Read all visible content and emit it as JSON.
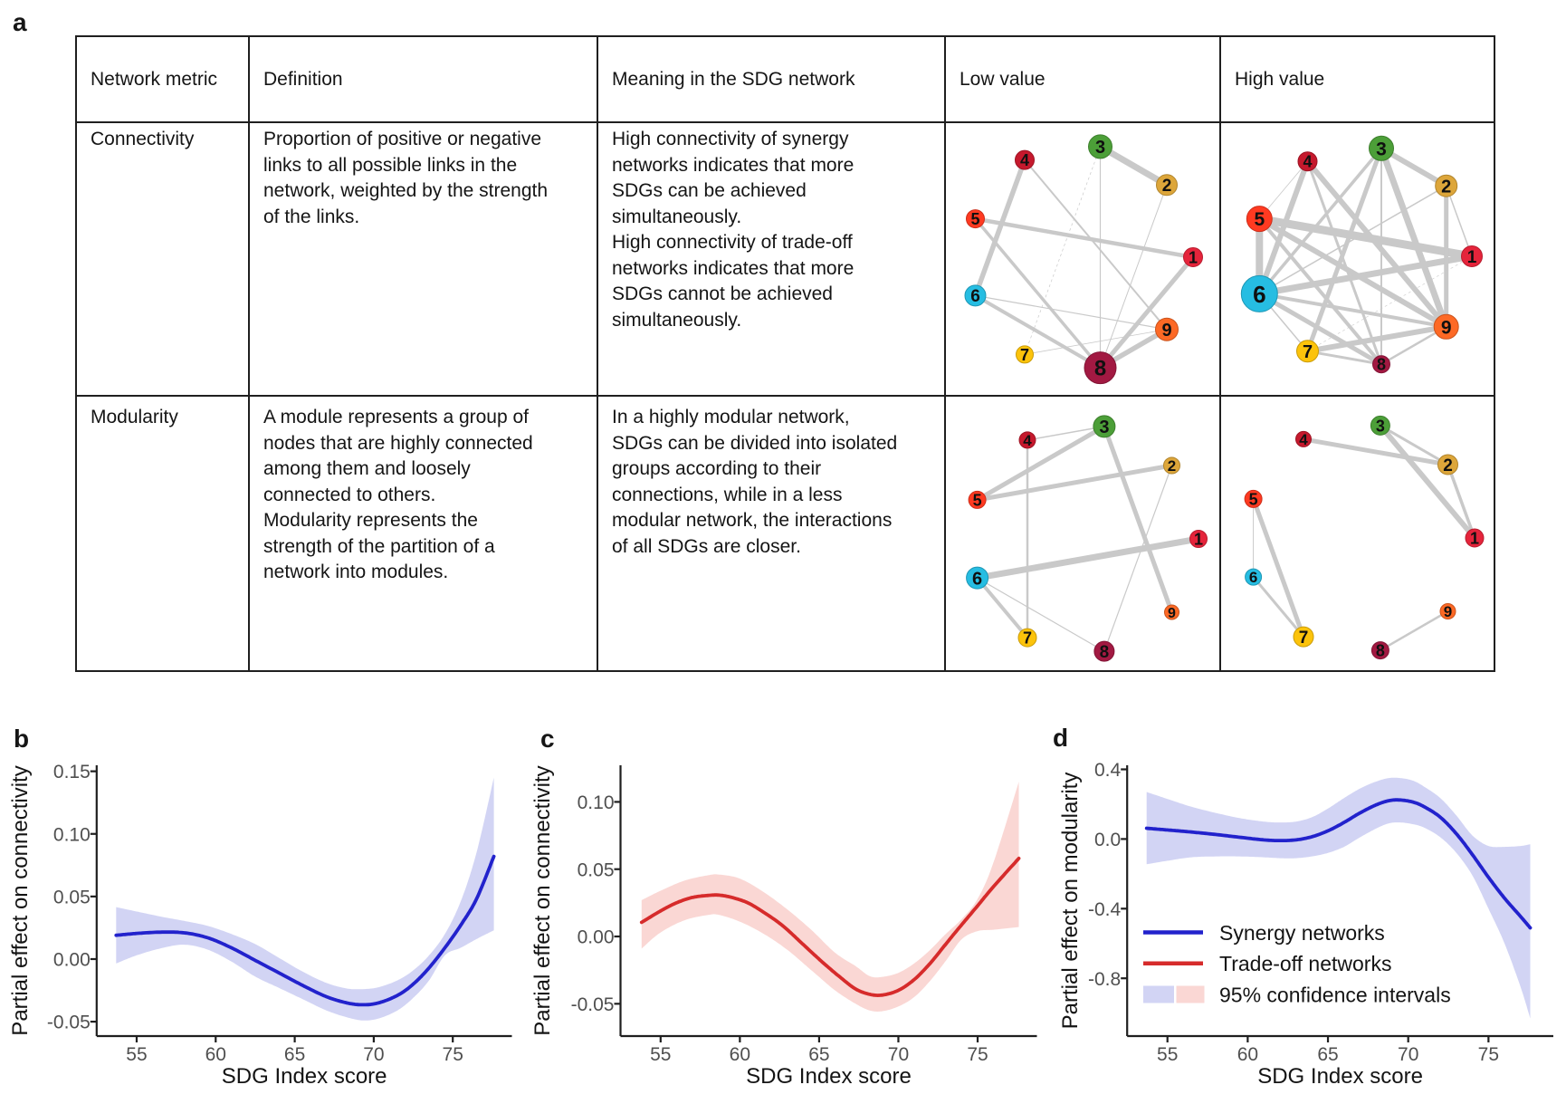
{
  "panel_letters": {
    "a": "a",
    "b": "b",
    "c": "c",
    "d": "d"
  },
  "table": {
    "headers": {
      "metric": "Network metric",
      "definition": "Definition",
      "meaning": "Meaning in the SDG network",
      "low": "Low value",
      "high": "High value"
    },
    "rows": [
      {
        "metric": "Connectivity",
        "definition": "Proportion of positive or negative\nlinks to all possible links in the\nnetwork, weighted by the strength\nof the links.",
        "meaning": "High connectivity of synergy\nnetworks indicates that more\nSDGs can be achieved\nsimultaneously.\nHigh connectivity of trade-off\nnetworks indicates that more\nSDGs cannot be achieved\nsimultaneously."
      },
      {
        "metric": "Modularity",
        "definition": "A module represents a group of\nnodes that are highly connected\namong them and loosely\nconnected to others.\nModularity represents the\nstrength of the partition of a\nnetwork into modules.",
        "meaning": "In a highly modular network,\nSDGs can be divided into isolated\ngroups according to their\nconnections, while in a less\nmodular network, the interactions\nof all SDGs are closer."
      }
    ]
  },
  "colors": {
    "sdg": {
      "1": "#E5243B",
      "2": "#DDA63A",
      "3": "#4C9F38",
      "4": "#C5192D",
      "5": "#FF3A21",
      "6": "#26BDE2",
      "7": "#FCC30B",
      "8": "#A21942",
      "9": "#FD6925"
    },
    "edge_gray": "#c9c9c9",
    "synergy_line": "#2222cc",
    "tradeoff_line": "#d62b2b",
    "synergy_band": "#d2d4f4",
    "tradeoff_band": "#fad7d4",
    "axis": "#1f1f1f",
    "tick_label": "#4f4f4f",
    "node_label": "#101010"
  },
  "networks": {
    "connectivity_low": {
      "metric": "Connectivity",
      "level": "Low value",
      "node_radii": {
        "1": 10.5,
        "2": 11.5,
        "3": 13,
        "4": 10.5,
        "5": 10,
        "6": 11.5,
        "7": 9.5,
        "8": 17.5,
        "9": 12.5
      },
      "edges": [
        {
          "a": 3,
          "b": 2,
          "w": 7
        },
        {
          "a": 4,
          "b": 6,
          "w": 5.5
        },
        {
          "a": 4,
          "b": 9,
          "w": 2
        },
        {
          "a": 5,
          "b": 1,
          "w": 4.5
        },
        {
          "a": 5,
          "b": 8,
          "w": 3.5
        },
        {
          "a": 6,
          "b": 8,
          "w": 4
        },
        {
          "a": 6,
          "b": 9,
          "w": 1.2
        },
        {
          "a": 1,
          "b": 8,
          "w": 5
        },
        {
          "a": 8,
          "b": 9,
          "w": 5.5
        },
        {
          "a": 3,
          "b": 8,
          "w": 1.2
        },
        {
          "a": 2,
          "b": 8,
          "w": 1
        },
        {
          "a": 7,
          "b": 9,
          "w": 0.8
        },
        {
          "a": 3,
          "b": 7,
          "w": 0.7,
          "dashed": true
        }
      ]
    },
    "connectivity_high": {
      "metric": "Connectivity",
      "level": "High value",
      "node_radii": {
        "1": 11.5,
        "2": 12,
        "3": 13.5,
        "4": 10.5,
        "5": 14,
        "6": 20,
        "7": 12,
        "8": 9.5,
        "9": 13.5
      },
      "edges": [
        {
          "a": 5,
          "b": 1,
          "w": 9
        },
        {
          "a": 5,
          "b": 6,
          "w": 8
        },
        {
          "a": 1,
          "b": 6,
          "w": 7
        },
        {
          "a": 3,
          "b": 9,
          "w": 7
        },
        {
          "a": 3,
          "b": 2,
          "w": 6
        },
        {
          "a": 4,
          "b": 6,
          "w": 6
        },
        {
          "a": 4,
          "b": 9,
          "w": 6
        },
        {
          "a": 5,
          "b": 9,
          "w": 6
        },
        {
          "a": 7,
          "b": 9,
          "w": 6
        },
        {
          "a": 6,
          "b": 8,
          "w": 5
        },
        {
          "a": 2,
          "b": 9,
          "w": 5
        },
        {
          "a": 3,
          "b": 7,
          "w": 5
        },
        {
          "a": 6,
          "b": 9,
          "w": 4
        },
        {
          "a": 5,
          "b": 8,
          "w": 4
        },
        {
          "a": 3,
          "b": 6,
          "w": 3.5
        },
        {
          "a": 4,
          "b": 8,
          "w": 3
        },
        {
          "a": 7,
          "b": 8,
          "w": 3
        },
        {
          "a": 8,
          "b": 9,
          "w": 2.5
        },
        {
          "a": 3,
          "b": 8,
          "w": 2
        },
        {
          "a": 2,
          "b": 6,
          "w": 1.5
        },
        {
          "a": 1,
          "b": 2,
          "w": 1.5
        },
        {
          "a": 6,
          "b": 7,
          "w": 1.5
        },
        {
          "a": 4,
          "b": 5,
          "w": 0.8
        },
        {
          "a": 1,
          "b": 7,
          "w": 0.6,
          "dashed": true
        }
      ]
    },
    "modularity_low": {
      "metric": "Modularity",
      "level": "Low value",
      "node_radii": {
        "1": 9.5,
        "2": 9,
        "3": 12,
        "4": 9,
        "5": 9.5,
        "6": 12,
        "7": 10,
        "8": 11,
        "9": 8
      },
      "edges": [
        {
          "a": 3,
          "b": 4,
          "w": 1.5
        },
        {
          "a": 3,
          "b": 5,
          "w": 5
        },
        {
          "a": 2,
          "b": 5,
          "w": 5
        },
        {
          "a": 3,
          "b": 9,
          "w": 5
        },
        {
          "a": 4,
          "b": 7,
          "w": 2.5
        },
        {
          "a": 1,
          "b": 6,
          "w": 7
        },
        {
          "a": 6,
          "b": 7,
          "w": 4
        },
        {
          "a": 6,
          "b": 8,
          "w": 1.2
        },
        {
          "a": 2,
          "b": 8,
          "w": 1.2
        }
      ]
    },
    "modularity_high": {
      "metric": "Modularity",
      "level": "High value",
      "node_radii": {
        "1": 10,
        "2": 11,
        "3": 10.5,
        "4": 8.5,
        "5": 9.5,
        "6": 9,
        "7": 11,
        "8": 9.5,
        "9": 8.5
      },
      "edges": [
        {
          "a": 2,
          "b": 4,
          "w": 5
        },
        {
          "a": 2,
          "b": 3,
          "w": 3
        },
        {
          "a": 1,
          "b": 3,
          "w": 6
        },
        {
          "a": 1,
          "b": 2,
          "w": 3.5
        },
        {
          "a": 5,
          "b": 7,
          "w": 5
        },
        {
          "a": 6,
          "b": 7,
          "w": 3
        },
        {
          "a": 5,
          "b": 6,
          "w": 1
        },
        {
          "a": 8,
          "b": 9,
          "w": 2.5
        }
      ]
    }
  },
  "chart_data": [
    {
      "type": "line",
      "panel": "b",
      "xlabel": "SDG Index score",
      "ylabel": "Partial effect on connectivity",
      "x_ticks": [
        55,
        60,
        65,
        70,
        75
      ],
      "x_tick_labels": [
        "55",
        "60",
        "65",
        "70",
        "75"
      ],
      "y_ticks": [
        -0.05,
        0,
        0.05,
        0.1,
        0.15
      ],
      "y_tick_labels": [
        "-0.05",
        "0.00",
        "0.05",
        "0.10",
        "0.15"
      ],
      "xlim": [
        52.47,
        78.74
      ],
      "ylim": [
        -0.0615,
        0.1548
      ],
      "grid": false,
      "legend_position": "none",
      "series": [
        {
          "name": "Synergy networks",
          "color_key": "synergy",
          "x": [
            53.7,
            55,
            56.5,
            58,
            59.5,
            61,
            62.5,
            64,
            65.5,
            67,
            68.3,
            69.3,
            70.3,
            71.5,
            72.5,
            73.5,
            74.5,
            75.5,
            76.5,
            77.6
          ],
          "y": [
            0.019,
            0.0205,
            0.0215,
            0.021,
            0.017,
            0.009,
            -0.001,
            -0.011,
            -0.021,
            -0.03,
            -0.035,
            -0.0365,
            -0.035,
            -0.029,
            -0.02,
            -0.007,
            0.009,
            0.027,
            0.048,
            0.082
          ]
        }
      ],
      "band": {
        "x": [
          53.7,
          55,
          56.5,
          58,
          59.5,
          61,
          62.5,
          64,
          65.5,
          67,
          68.3,
          69.3,
          70.3,
          71.5,
          72.5,
          73.5,
          74.5,
          75.5,
          76.5,
          77.6
        ],
        "upper": [
          0.0415,
          0.038,
          0.034,
          0.0305,
          0.0265,
          0.02,
          0.012,
          0.001,
          -0.01,
          -0.019,
          -0.0235,
          -0.024,
          -0.0225,
          -0.017,
          -0.009,
          0.003,
          0.02,
          0.046,
          0.085,
          0.145
        ],
        "lower": [
          -0.0035,
          0.003,
          0.0085,
          0.0115,
          0.0075,
          -0.002,
          -0.014,
          -0.023,
          -0.032,
          -0.041,
          -0.0465,
          -0.049,
          -0.0475,
          -0.041,
          -0.031,
          -0.017,
          0.003,
          0.009,
          0.016,
          0.023
        ]
      }
    },
    {
      "type": "line",
      "panel": "c",
      "xlabel": "SDG Index score",
      "ylabel": "Partial effect on connectivity",
      "x_ticks": [
        55,
        60,
        65,
        70,
        75
      ],
      "x_tick_labels": [
        "55",
        "60",
        "65",
        "70",
        "75"
      ],
      "y_ticks": [
        -0.05,
        0,
        0.05,
        0.1
      ],
      "y_tick_labels": [
        "-0.05",
        "0.00",
        "0.05",
        "0.10"
      ],
      "xlim": [
        52.47,
        78.74
      ],
      "ylim": [
        -0.074,
        0.1272
      ],
      "grid": false,
      "legend_position": "none",
      "series": [
        {
          "name": "Trade-off networks",
          "color_key": "tradeoff",
          "x": [
            53.8,
            55,
            56,
            57,
            58,
            58.7,
            59.5,
            60.5,
            61.5,
            62.7,
            64,
            65.2,
            66.3,
            67.3,
            68.2,
            69,
            70,
            71,
            72,
            72.9,
            73.8,
            74.8,
            76,
            77.6
          ],
          "y": [
            0.0105,
            0.019,
            0.025,
            0.029,
            0.0305,
            0.0307,
            0.029,
            0.025,
            0.018,
            0.008,
            -0.006,
            -0.019,
            -0.03,
            -0.039,
            -0.043,
            -0.0435,
            -0.04,
            -0.032,
            -0.02,
            -0.007,
            0.006,
            0.02,
            0.037,
            0.058
          ]
        }
      ],
      "band": {
        "x": [
          53.8,
          55,
          56.5,
          58,
          58.7,
          60,
          61.5,
          63,
          64.5,
          66,
          67.3,
          68.2,
          69,
          70,
          71,
          72,
          73,
          74,
          75,
          76,
          77.6
        ],
        "upper": [
          0.027,
          0.034,
          0.0415,
          0.0455,
          0.046,
          0.043,
          0.033,
          0.02,
          0.005,
          -0.012,
          -0.022,
          -0.0295,
          -0.03,
          -0.027,
          -0.02,
          -0.01,
          0.002,
          0.013,
          0.028,
          0.055,
          0.115
        ],
        "lower": [
          -0.009,
          0.003,
          0.012,
          0.016,
          0.016,
          0.011,
          0.002,
          -0.01,
          -0.025,
          -0.04,
          -0.05,
          -0.055,
          -0.0555,
          -0.052,
          -0.045,
          -0.033,
          -0.018,
          -0.002,
          0.004,
          0.005,
          0.007
        ]
      }
    },
    {
      "type": "line",
      "panel": "d",
      "xlabel": "SDG Index score",
      "ylabel": "Partial effect on modularity",
      "x_ticks": [
        55,
        60,
        65,
        70,
        75
      ],
      "x_tick_labels": [
        "55",
        "60",
        "65",
        "70",
        "75"
      ],
      "y_ticks": [
        -0.8,
        -0.4,
        0,
        0.4
      ],
      "y_tick_labels": [
        "-0.8",
        "-0.4",
        "0.0",
        "0.4"
      ],
      "xlim": [
        52.49,
        79.04
      ],
      "ylim": [
        -1.1318,
        0.4234
      ],
      "grid": false,
      "legend_position": "inside-left-bottom",
      "series": [
        {
          "name": "Synergy networks",
          "color_key": "synergy",
          "x": [
            53.7,
            55,
            56.5,
            58,
            59.5,
            61,
            62,
            63,
            64,
            65,
            66,
            67,
            68,
            68.8,
            69.5,
            70.3,
            71,
            72,
            73,
            74,
            75,
            76,
            77,
            77.6
          ],
          "y": [
            0.062,
            0.052,
            0.04,
            0.026,
            0.01,
            -0.005,
            -0.009,
            -0.005,
            0.013,
            0.047,
            0.095,
            0.15,
            0.196,
            0.22,
            0.224,
            0.212,
            0.185,
            0.125,
            0.03,
            -0.09,
            -0.22,
            -0.34,
            -0.445,
            -0.51
          ]
        }
      ],
      "band": {
        "x": [
          53.7,
          55,
          56.5,
          58,
          59.5,
          61,
          62,
          63,
          64,
          65,
          66,
          67,
          68,
          68.8,
          69.5,
          70.3,
          71,
          72,
          73,
          74,
          75,
          76,
          77,
          77.6
        ],
        "upper": [
          0.27,
          0.23,
          0.185,
          0.15,
          0.12,
          0.1,
          0.095,
          0.1,
          0.125,
          0.175,
          0.235,
          0.29,
          0.33,
          0.35,
          0.35,
          0.335,
          0.3,
          0.235,
          0.135,
          0.02,
          -0.04,
          -0.045,
          -0.04,
          -0.03
        ],
        "lower": [
          -0.145,
          -0.125,
          -0.105,
          -0.1,
          -0.1,
          -0.105,
          -0.11,
          -0.11,
          -0.1,
          -0.08,
          -0.045,
          0.01,
          0.06,
          0.09,
          0.095,
          0.085,
          0.065,
          0.01,
          -0.08,
          -0.21,
          -0.4,
          -0.6,
          -0.85,
          -1.03
        ]
      },
      "legend": [
        {
          "type": "line",
          "color_key": "synergy",
          "label": "Synergy networks"
        },
        {
          "type": "line",
          "color_key": "tradeoff",
          "label": "Trade-off networks"
        },
        {
          "type": "patches",
          "color_keys": [
            "synergy",
            "tradeoff"
          ],
          "label": "95% confidence intervals"
        }
      ]
    }
  ]
}
